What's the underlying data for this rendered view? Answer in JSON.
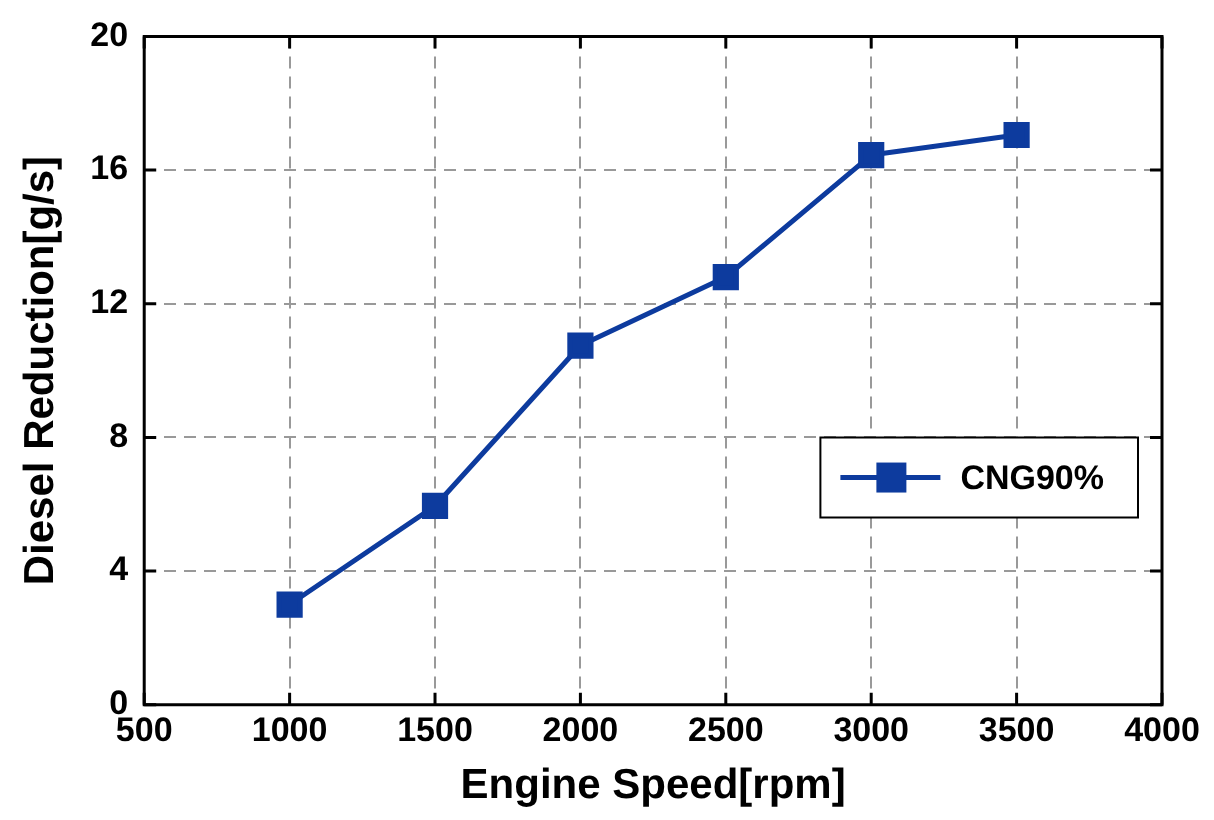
{
  "chart_data": {
    "type": "line",
    "xlabel": "Engine Speed[rpm]",
    "ylabel": "Diesel Reduction[g/s]",
    "x": [
      1000,
      1500,
      2000,
      2500,
      3000,
      3500
    ],
    "series": [
      {
        "name": "CNG90%",
        "color": "#0d3b9e",
        "values": [
          3.0,
          5.95,
          10.75,
          12.8,
          16.45,
          17.05
        ]
      }
    ],
    "xlim": [
      500,
      4000
    ],
    "xticks": [
      500,
      1000,
      1500,
      2000,
      2500,
      3000,
      3500,
      4000
    ],
    "ylim": [
      0,
      20
    ],
    "yticks": [
      0,
      4,
      8,
      12,
      16,
      20
    ],
    "grid": true,
    "legend": "right",
    "marker": "square",
    "line_style": "solid"
  }
}
